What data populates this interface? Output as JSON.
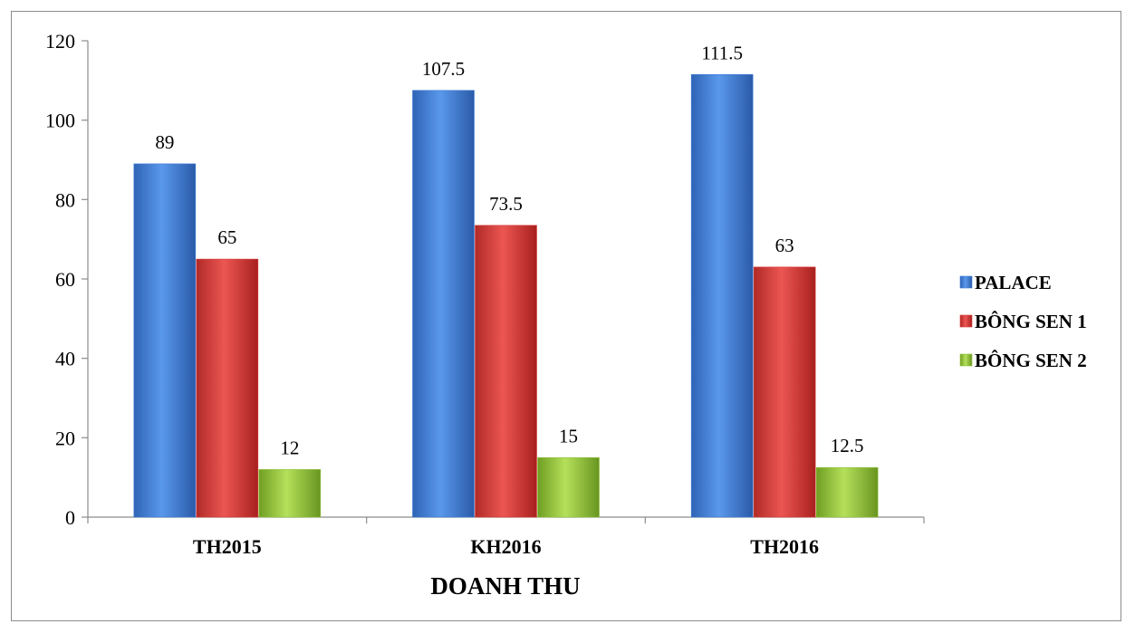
{
  "chart_data": {
    "type": "bar",
    "title": "",
    "xlabel": "DOANH THU",
    "ylabel": "",
    "ylim": [
      0,
      120
    ],
    "yticks": [
      0,
      20,
      40,
      60,
      80,
      100,
      120
    ],
    "grid": false,
    "legend_position": "right",
    "categories": [
      "TH2015",
      "KH2016",
      "TH2016"
    ],
    "series": [
      {
        "name": "PALACE",
        "color": "#3b7dd8",
        "values": [
          89,
          107.5,
          111.5
        ]
      },
      {
        "name": "BÔNG SEN 1",
        "color": "#d73a36",
        "values": [
          65,
          73.5,
          63
        ]
      },
      {
        "name": "BÔNG SEN 2",
        "color": "#8fc33a",
        "values": [
          12,
          15,
          12.5
        ]
      }
    ]
  }
}
